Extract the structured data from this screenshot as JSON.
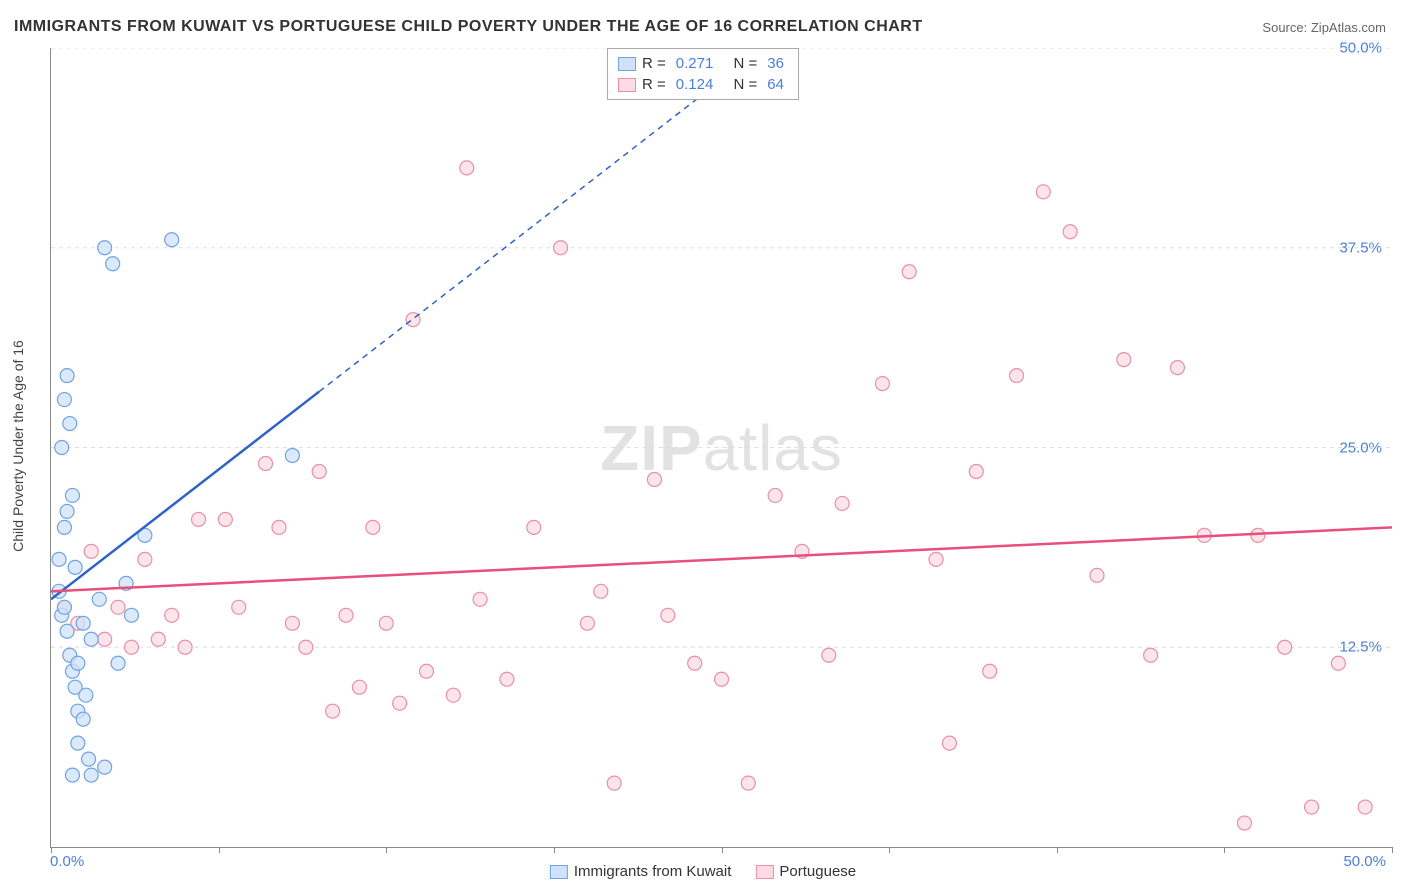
{
  "title": "IMMIGRANTS FROM KUWAIT VS PORTUGUESE CHILD POVERTY UNDER THE AGE OF 16 CORRELATION CHART",
  "source_label": "Source:",
  "source_value": "ZipAtlas.com",
  "watermark_a": "ZIP",
  "watermark_b": "atlas",
  "ylabel": "Child Poverty Under the Age of 16",
  "chart": {
    "type": "scatter",
    "xlim": [
      0,
      50
    ],
    "ylim": [
      0,
      50
    ],
    "x_tick_label_min": "0.0%",
    "x_tick_label_max": "50.0%",
    "y_tick_labels": [
      "12.5%",
      "25.0%",
      "37.5%",
      "50.0%"
    ],
    "y_tick_values": [
      12.5,
      25.0,
      37.5,
      50.0
    ],
    "x_minor_ticks": [
      0,
      6.25,
      12.5,
      18.75,
      25,
      31.25,
      37.5,
      43.75,
      50
    ],
    "grid_color": "#dddddd",
    "axis_color": "#888888",
    "background_color": "#ffffff",
    "marker_radius": 7,
    "marker_stroke_width": 1.2,
    "line_width": 2.5,
    "tick_label_color": "#4a7fd8",
    "tick_label_fontsize": 15,
    "title_fontsize": 16,
    "series": [
      {
        "name": "Immigrants from Kuwait",
        "color_fill": "#cfe2f9",
        "color_stroke": "#6fa3e0",
        "line_color": "#2f62c9",
        "R": "0.271",
        "N": "36",
        "trend": {
          "x1": 0,
          "y1": 15.5,
          "x2": 10,
          "y2": 28.5,
          "dash_x2": 30,
          "dash_y2": 54.5
        },
        "points": [
          [
            0.4,
            14.5
          ],
          [
            0.5,
            15.0
          ],
          [
            0.6,
            13.5
          ],
          [
            0.7,
            12.0
          ],
          [
            0.3,
            16.0
          ],
          [
            0.8,
            11.0
          ],
          [
            0.9,
            10.0
          ],
          [
            1.0,
            8.5
          ],
          [
            0.5,
            20.0
          ],
          [
            0.6,
            21.0
          ],
          [
            0.8,
            22.0
          ],
          [
            0.4,
            25.0
          ],
          [
            0.7,
            26.5
          ],
          [
            0.5,
            28.0
          ],
          [
            0.6,
            29.5
          ],
          [
            0.3,
            18.0
          ],
          [
            0.9,
            17.5
          ],
          [
            1.2,
            14.0
          ],
          [
            1.5,
            13.0
          ],
          [
            1.8,
            15.5
          ],
          [
            1.0,
            6.5
          ],
          [
            1.4,
            5.5
          ],
          [
            1.5,
            4.5
          ],
          [
            1.2,
            8.0
          ],
          [
            0.8,
            4.5
          ],
          [
            2.0,
            5.0
          ],
          [
            2.5,
            11.5
          ],
          [
            3.0,
            14.5
          ],
          [
            3.5,
            19.5
          ],
          [
            4.5,
            38.0
          ],
          [
            2.3,
            36.5
          ],
          [
            2.0,
            37.5
          ],
          [
            9.0,
            24.5
          ],
          [
            2.8,
            16.5
          ],
          [
            1.0,
            11.5
          ],
          [
            1.3,
            9.5
          ]
        ]
      },
      {
        "name": "Portuguese",
        "color_fill": "#fbdbe4",
        "color_stroke": "#e98fa8",
        "line_color": "#e84f7a",
        "R": "0.124",
        "N": "64",
        "trend": {
          "x1": 0,
          "y1": 16.0,
          "x2": 50,
          "y2": 20.0
        },
        "points": [
          [
            0.5,
            15.0
          ],
          [
            1.0,
            14.0
          ],
          [
            1.5,
            18.5
          ],
          [
            2.0,
            13.0
          ],
          [
            2.5,
            15.0
          ],
          [
            3.0,
            12.5
          ],
          [
            3.5,
            18.0
          ],
          [
            4.0,
            13.0
          ],
          [
            4.5,
            14.5
          ],
          [
            5.0,
            12.5
          ],
          [
            5.5,
            20.5
          ],
          [
            6.5,
            20.5
          ],
          [
            7.0,
            15.0
          ],
          [
            8.0,
            24.0
          ],
          [
            8.5,
            20.0
          ],
          [
            9.0,
            14.0
          ],
          [
            9.5,
            12.5
          ],
          [
            10.0,
            23.5
          ],
          [
            10.5,
            8.5
          ],
          [
            11.0,
            14.5
          ],
          [
            11.5,
            10.0
          ],
          [
            12.0,
            20.0
          ],
          [
            12.5,
            14.0
          ],
          [
            13.0,
            9.0
          ],
          [
            13.5,
            33.0
          ],
          [
            14.0,
            11.0
          ],
          [
            15.0,
            9.5
          ],
          [
            15.5,
            42.5
          ],
          [
            16.0,
            15.5
          ],
          [
            17.0,
            10.5
          ],
          [
            18.0,
            20.0
          ],
          [
            19.0,
            37.5
          ],
          [
            20.0,
            14.0
          ],
          [
            20.5,
            16.0
          ],
          [
            21.0,
            4.0
          ],
          [
            22.5,
            23.0
          ],
          [
            23.0,
            14.5
          ],
          [
            24.0,
            11.5
          ],
          [
            25.0,
            10.5
          ],
          [
            26.0,
            4.0
          ],
          [
            27.0,
            22.0
          ],
          [
            28.0,
            18.5
          ],
          [
            29.0,
            12.0
          ],
          [
            29.5,
            21.5
          ],
          [
            31.0,
            29.0
          ],
          [
            32.0,
            36.0
          ],
          [
            33.0,
            18.0
          ],
          [
            33.5,
            6.5
          ],
          [
            34.5,
            23.5
          ],
          [
            35.0,
            11.0
          ],
          [
            36.0,
            29.5
          ],
          [
            37.0,
            41.0
          ],
          [
            38.0,
            38.5
          ],
          [
            39.0,
            17.0
          ],
          [
            40.0,
            30.5
          ],
          [
            41.0,
            12.0
          ],
          [
            42.0,
            30.0
          ],
          [
            43.0,
            19.5
          ],
          [
            44.5,
            1.5
          ],
          [
            45.0,
            19.5
          ],
          [
            46.0,
            12.5
          ],
          [
            47.0,
            2.5
          ],
          [
            48.0,
            11.5
          ],
          [
            49.0,
            2.5
          ]
        ]
      }
    ]
  },
  "legend": {
    "R_label": "R =",
    "N_label": "N ="
  }
}
